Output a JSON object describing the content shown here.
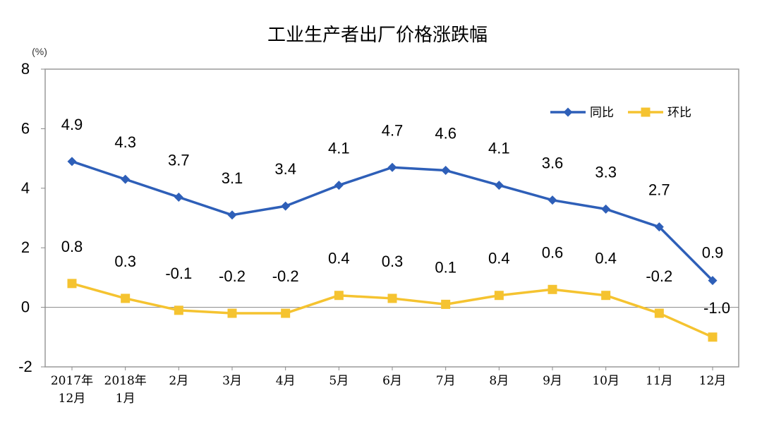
{
  "chart_data": {
    "type": "line",
    "title": "工业生产者出厂价格涨跌幅",
    "unit": "(%)",
    "categories": [
      "2017年\n12月",
      "2018年\n1月",
      "2月",
      "3月",
      "4月",
      "5月",
      "6月",
      "7月",
      "8月",
      "9月",
      "10月",
      "11月",
      "12月"
    ],
    "ylim": [
      -2,
      8
    ],
    "yticks": [
      "8",
      "6",
      "4",
      "2",
      "0",
      "-2"
    ],
    "series": [
      {
        "name": "同比",
        "color": "#2e5fb8",
        "marker": "diamond",
        "values": [
          4.9,
          4.3,
          3.7,
          3.1,
          3.4,
          4.1,
          4.7,
          4.6,
          4.1,
          3.6,
          3.3,
          2.7,
          0.9
        ],
        "labels": [
          "4.9",
          "4.3",
          "3.7",
          "3.1",
          "3.4",
          "4.1",
          "4.7",
          "4.6",
          "4.1",
          "3.6",
          "3.3",
          "2.7",
          "0.9"
        ]
      },
      {
        "name": "环比",
        "color": "#f5c330",
        "marker": "square",
        "values": [
          0.8,
          0.3,
          -0.1,
          -0.2,
          -0.2,
          0.4,
          0.3,
          0.1,
          0.4,
          0.6,
          0.4,
          -0.2,
          -1.0
        ],
        "labels": [
          "0.8",
          "0.3",
          "-0.1",
          "-0.2",
          "-0.2",
          "0.4",
          "0.3",
          "0.1",
          "0.4",
          "0.6",
          "0.4",
          "-0.2",
          "-1.0"
        ]
      }
    ],
    "grid": false,
    "legend": "top-right"
  }
}
